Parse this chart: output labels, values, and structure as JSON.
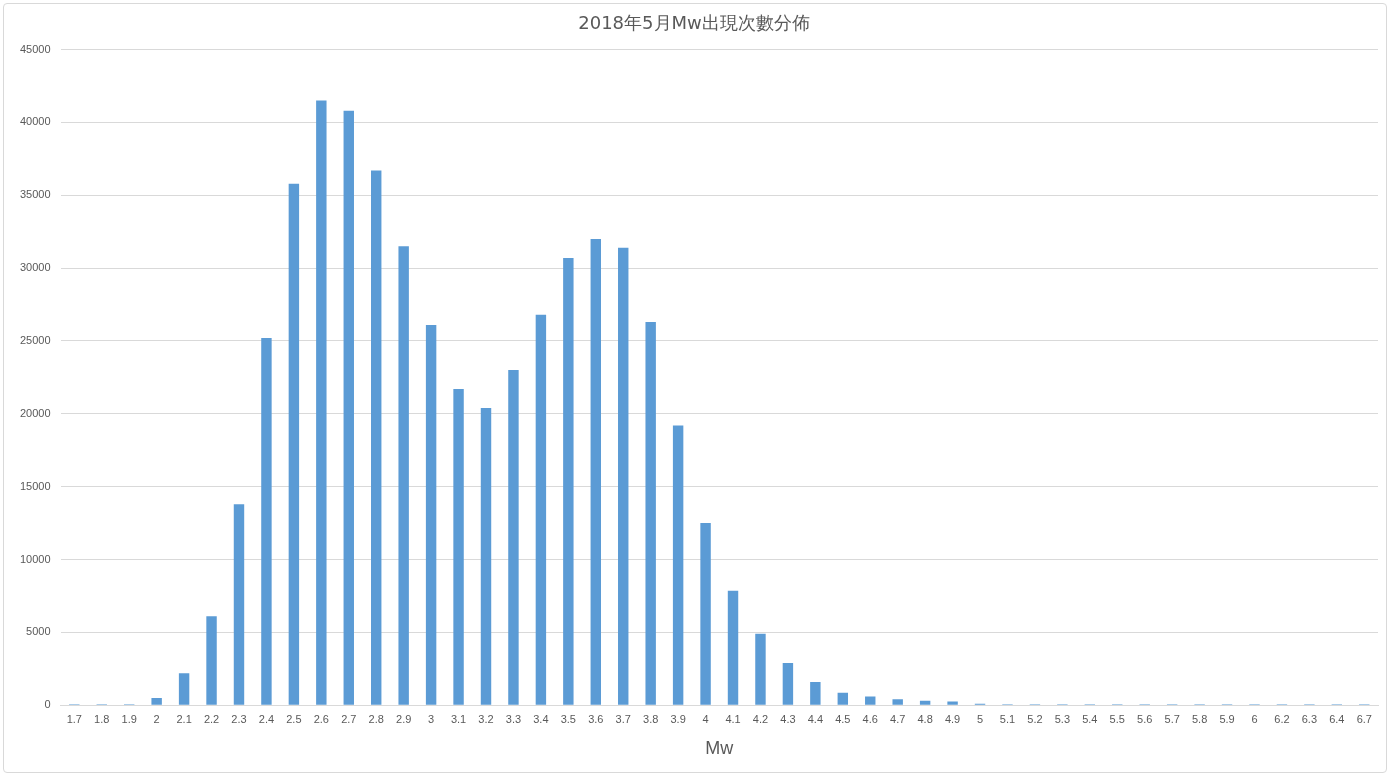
{
  "chart_data": {
    "type": "bar",
    "title": "2018年5月Mw出現次數分佈",
    "xlabel": "Mw",
    "categories": [
      "1.7",
      "1.8",
      "1.9",
      "2",
      "2.1",
      "2.2",
      "2.3",
      "2.4",
      "2.5",
      "2.6",
      "2.7",
      "2.8",
      "2.9",
      "3",
      "3.1",
      "3.2",
      "3.3",
      "3.4",
      "3.5",
      "3.6",
      "3.7",
      "3.8",
      "3.9",
      "4",
      "4.1",
      "4.2",
      "4.3",
      "4.4",
      "4.5",
      "4.6",
      "4.7",
      "4.8",
      "4.9",
      "5",
      "5.1",
      "5.2",
      "5.3",
      "5.4",
      "5.5",
      "5.6",
      "5.7",
      "5.8",
      "5.9",
      "6",
      "6.2",
      "6.3",
      "6.4",
      "6.7"
    ],
    "values": [
      70,
      70,
      70,
      500,
      2200,
      6100,
      13800,
      25200,
      35800,
      41500,
      40800,
      36700,
      31500,
      26100,
      21700,
      20400,
      23000,
      26800,
      30700,
      32000,
      31400,
      26300,
      19200,
      12500,
      7850,
      4900,
      2900,
      1600,
      850,
      600,
      400,
      300,
      250,
      100,
      70,
      70,
      70,
      70,
      70,
      70,
      70,
      70,
      70,
      70,
      70,
      70,
      70,
      70
    ],
    "color": "#5b9bd5",
    "ylim": [
      0,
      45000
    ],
    "yticks": [
      0,
      5000,
      10000,
      15000,
      20000,
      25000,
      30000,
      35000,
      40000,
      45000
    ],
    "grid": "y",
    "legend": false
  }
}
